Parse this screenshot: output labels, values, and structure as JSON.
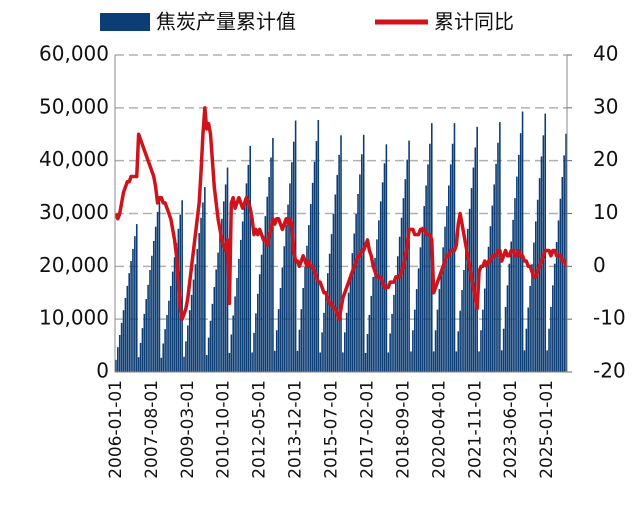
{
  "chart_data": {
    "type": "bar-line",
    "categories": [
      "2006-01-01",
      null,
      null,
      null,
      null,
      null,
      null,
      null,
      null,
      null,
      null,
      null,
      null,
      null,
      null,
      null,
      null,
      null,
      null,
      "2007-08-01",
      null,
      null,
      null,
      null,
      null,
      null,
      null,
      null,
      null,
      null,
      null,
      null,
      null,
      null,
      null,
      null,
      null,
      null,
      "2009-03-01",
      null,
      null,
      null,
      null,
      null,
      null,
      null,
      null,
      null,
      null,
      null,
      null,
      null,
      null,
      null,
      null,
      null,
      null,
      "2010-10-01",
      null,
      null,
      null,
      null,
      null,
      null,
      null,
      null,
      null,
      null,
      null,
      null,
      null,
      null,
      null,
      null,
      null,
      null,
      "2012-05-01",
      null,
      null,
      null,
      null,
      null,
      null,
      null,
      null,
      null,
      null,
      null,
      null,
      null,
      null,
      null,
      null,
      null,
      null,
      "2013-12-01",
      null,
      null,
      null,
      null,
      null,
      null,
      null,
      null,
      null,
      null,
      null,
      null,
      null,
      null,
      null,
      null,
      null,
      null,
      "2015-07-01",
      null,
      null,
      null,
      null,
      null,
      null,
      null,
      null,
      null,
      null,
      null,
      null,
      null,
      null,
      null,
      null,
      null,
      null,
      "2017-02-01",
      null,
      null,
      null,
      null,
      null,
      null,
      null,
      null,
      null,
      null,
      null,
      null,
      null,
      null,
      null,
      null,
      null,
      null,
      "2018-09-01",
      null,
      null,
      null,
      null,
      null,
      null,
      null,
      null,
      null,
      null,
      null,
      null,
      null,
      null,
      null,
      null,
      null,
      null,
      "2020-04-01",
      null,
      null,
      null,
      null,
      null,
      null,
      null,
      null,
      null,
      null,
      null,
      null,
      null,
      null,
      null,
      null,
      null,
      null,
      "2021-11-01",
      null,
      null,
      null,
      null,
      null,
      null,
      null,
      null,
      null,
      null,
      null,
      null,
      null,
      null,
      null,
      null,
      null,
      null,
      "2023-06-01",
      null,
      null,
      null,
      null,
      null,
      null,
      null,
      null,
      null,
      null,
      null,
      null,
      null,
      null,
      null,
      null,
      null,
      null,
      "2025-01-01",
      null,
      null,
      null,
      null,
      null,
      null,
      null,
      null,
      null,
      null
    ],
    "series": [
      {
        "name": "焦炭产量累计值",
        "color": "#0c3d74",
        "values": [
          2300,
          4700,
          7000,
          9300,
          11700,
          14000,
          16300,
          18700,
          21000,
          23300,
          25700,
          28000,
          2800,
          5500,
          8300,
          11000,
          13800,
          16500,
          19300,
          22000,
          24800,
          27500,
          30300,
          33000,
          2700,
          5400,
          8100,
          10800,
          13500,
          16300,
          19000,
          21700,
          24400,
          27100,
          29800,
          32500,
          2900,
          5800,
          8800,
          11700,
          14600,
          17500,
          20400,
          23300,
          26300,
          29200,
          32100,
          35000,
          3200,
          6500,
          9700,
          12900,
          16100,
          19400,
          22600,
          25800,
          29000,
          32300,
          35500,
          38700,
          3600,
          7100,
          10700,
          14300,
          17800,
          21400,
          25000,
          28500,
          32100,
          35700,
          39200,
          42800,
          3700,
          7400,
          11100,
          14800,
          18500,
          22200,
          25800,
          29500,
          33200,
          36900,
          40600,
          44300,
          4000,
          7900,
          11900,
          15900,
          19800,
          23800,
          27800,
          31700,
          35700,
          39700,
          43600,
          47600,
          4000,
          8000,
          11900,
          15900,
          19900,
          23900,
          27800,
          31800,
          35800,
          39800,
          43700,
          47700,
          3700,
          7500,
          11200,
          14900,
          18700,
          22400,
          26100,
          29900,
          33600,
          37300,
          41100,
          44800,
          3700,
          7500,
          11200,
          15000,
          18700,
          22500,
          26200,
          29900,
          33700,
          37400,
          41200,
          44900,
          3600,
          7200,
          10800,
          14400,
          18000,
          21600,
          25100,
          28700,
          32300,
          35900,
          39500,
          43100,
          3700,
          7300,
          11000,
          14600,
          18300,
          21900,
          25600,
          29200,
          32900,
          36500,
          40200,
          43800,
          3900,
          7900,
          11800,
          15700,
          19600,
          23600,
          27500,
          31400,
          35300,
          39300,
          43200,
          47100,
          3900,
          7900,
          11800,
          15700,
          19600,
          23600,
          27500,
          31400,
          35300,
          39300,
          43200,
          47100,
          3900,
          7700,
          11600,
          15500,
          19300,
          23200,
          27100,
          30900,
          34800,
          38700,
          42500,
          46400,
          3900,
          7900,
          11800,
          15800,
          19700,
          23700,
          27600,
          31500,
          35500,
          39400,
          43400,
          47300,
          4100,
          8200,
          12300,
          16400,
          20500,
          24700,
          28800,
          32900,
          37000,
          41100,
          45200,
          49300,
          4100,
          8200,
          12200,
          16300,
          20400,
          24500,
          28500,
          32600,
          36700,
          40800,
          44800,
          48900,
          4100,
          8200,
          12300,
          16400,
          20500,
          24600,
          28700,
          32800,
          36900,
          41000,
          45100
        ]
      },
      {
        "name": "累计同比",
        "color": "#d0121b",
        "axis": "y2",
        "values": [
          10,
          9,
          10,
          12,
          14,
          15,
          16,
          16,
          17,
          17,
          17,
          17,
          25,
          24,
          23,
          22,
          21,
          20,
          19,
          18,
          17,
          15,
          12,
          13,
          13,
          12,
          12,
          11,
          10,
          9,
          7,
          5,
          2,
          -3,
          -8,
          -10,
          -9,
          -8,
          -6,
          -3,
          0,
          3,
          6,
          9,
          12,
          18,
          25,
          30,
          26,
          27,
          25,
          20,
          15,
          12,
          9,
          7,
          5,
          4,
          3,
          5,
          -7,
          12,
          13,
          11,
          12,
          13,
          12,
          11,
          12,
          13,
          12,
          11,
          9,
          6,
          7,
          6,
          7,
          6,
          5,
          5,
          4,
          6,
          7,
          9,
          8,
          9,
          9,
          8,
          7,
          8,
          9,
          8,
          9,
          8,
          3,
          1,
          1,
          0,
          1,
          2,
          1,
          0,
          1,
          0,
          0,
          -1,
          -2,
          -3,
          -3,
          -4,
          -5,
          -5,
          -6,
          -7,
          -7,
          -8,
          -8,
          -9,
          -10,
          -8,
          -6,
          -5,
          -4,
          -3,
          -2,
          -1,
          0,
          1,
          2,
          2,
          3,
          3,
          4,
          5,
          3,
          2,
          0,
          -1,
          -2,
          -2,
          -2,
          -3,
          -4,
          -4,
          -4,
          -3,
          -3,
          -3,
          -2,
          -2,
          -2,
          -1,
          0,
          2,
          4,
          7,
          7,
          7,
          6,
          6,
          6,
          7,
          7,
          7,
          6,
          6,
          6,
          5,
          -5,
          -4,
          -3,
          -2,
          -1,
          0,
          1,
          2,
          2,
          3,
          3,
          3,
          4,
          8,
          10,
          8,
          6,
          4,
          2,
          0,
          -2,
          -4,
          -6,
          -8,
          -1,
          0,
          0,
          1,
          0,
          1,
          1,
          2,
          2,
          2,
          3,
          3,
          1,
          2,
          3,
          2,
          2,
          3,
          3,
          2,
          2,
          3,
          2,
          2,
          1,
          1,
          0,
          0,
          -1,
          -2,
          -2,
          -1,
          0,
          1,
          2,
          3,
          3,
          3,
          2,
          3,
          3,
          2,
          2,
          2,
          1,
          1,
          0
        ]
      }
    ],
    "ylim": [
      0,
      60000
    ],
    "yticks": [
      0,
      {
        "value": 10000,
        "label": "10,000"
      },
      {
        "value": 20000,
        "label": "20,000"
      },
      {
        "value": 30000,
        "label": "30,000"
      },
      {
        "value": 40000,
        "label": "40,000"
      },
      {
        "value": 50000,
        "label": "50,000"
      },
      {
        "value": 60000,
        "label": "60,000"
      }
    ],
    "y2lim": [
      -20,
      40
    ],
    "y2ticks": [
      -20,
      -10,
      0,
      10,
      20,
      30,
      40
    ],
    "grid": true
  }
}
